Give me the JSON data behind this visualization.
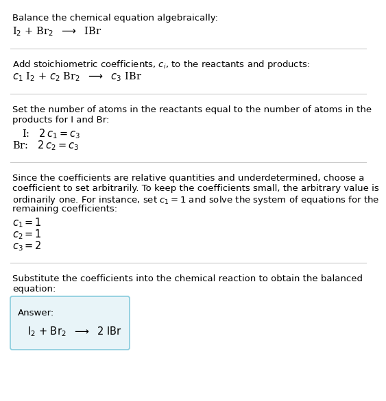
{
  "bg_color": "#ffffff",
  "text_color": "#000000",
  "line_color": "#cccccc",
  "box_edge_color": "#88ccdd",
  "box_face_color": "#e8f4f8",
  "fs_body": 9.5,
  "fs_math": 10.5,
  "sections": [
    {
      "type": "text_then_math",
      "body": "Balance the chemical equation algebraically:",
      "math": "I$_2$ + Br$_2$  ⟶  IBr"
    },
    {
      "type": "text_then_math",
      "body": "Add stoichiometric coefficients, $c_i$, to the reactants and products:",
      "math": "$c_1$ I$_2$ + $c_2$ Br$_2$  ⟶  $c_3$ IBr"
    },
    {
      "type": "atom_balance",
      "body_lines": [
        "Set the number of atoms in the reactants equal to the number of atoms in the",
        "products for I and Br:"
      ],
      "math_lines": [
        "  I:   $2\\,c_1 = c_3$",
        "Br:   $2\\,c_2 = c_3$"
      ]
    },
    {
      "type": "solve",
      "body_lines": [
        "Since the coefficients are relative quantities and underdetermined, choose a",
        "coefficient to set arbitrarily. To keep the coefficients small, the arbitrary value is",
        "ordinarily one. For instance, set $c_1 = 1$ and solve the system of equations for the",
        "remaining coefficients:"
      ],
      "math_lines": [
        "$c_1 = 1$",
        "$c_2 = 1$",
        "$c_3 = 2$"
      ]
    },
    {
      "type": "answer",
      "body_lines": [
        "Substitute the coefficients into the chemical reaction to obtain the balanced",
        "equation:"
      ],
      "answer_label": "Answer:",
      "answer_eq": "I$_2$ + Br$_2$  ⟶  2 IBr"
    }
  ]
}
